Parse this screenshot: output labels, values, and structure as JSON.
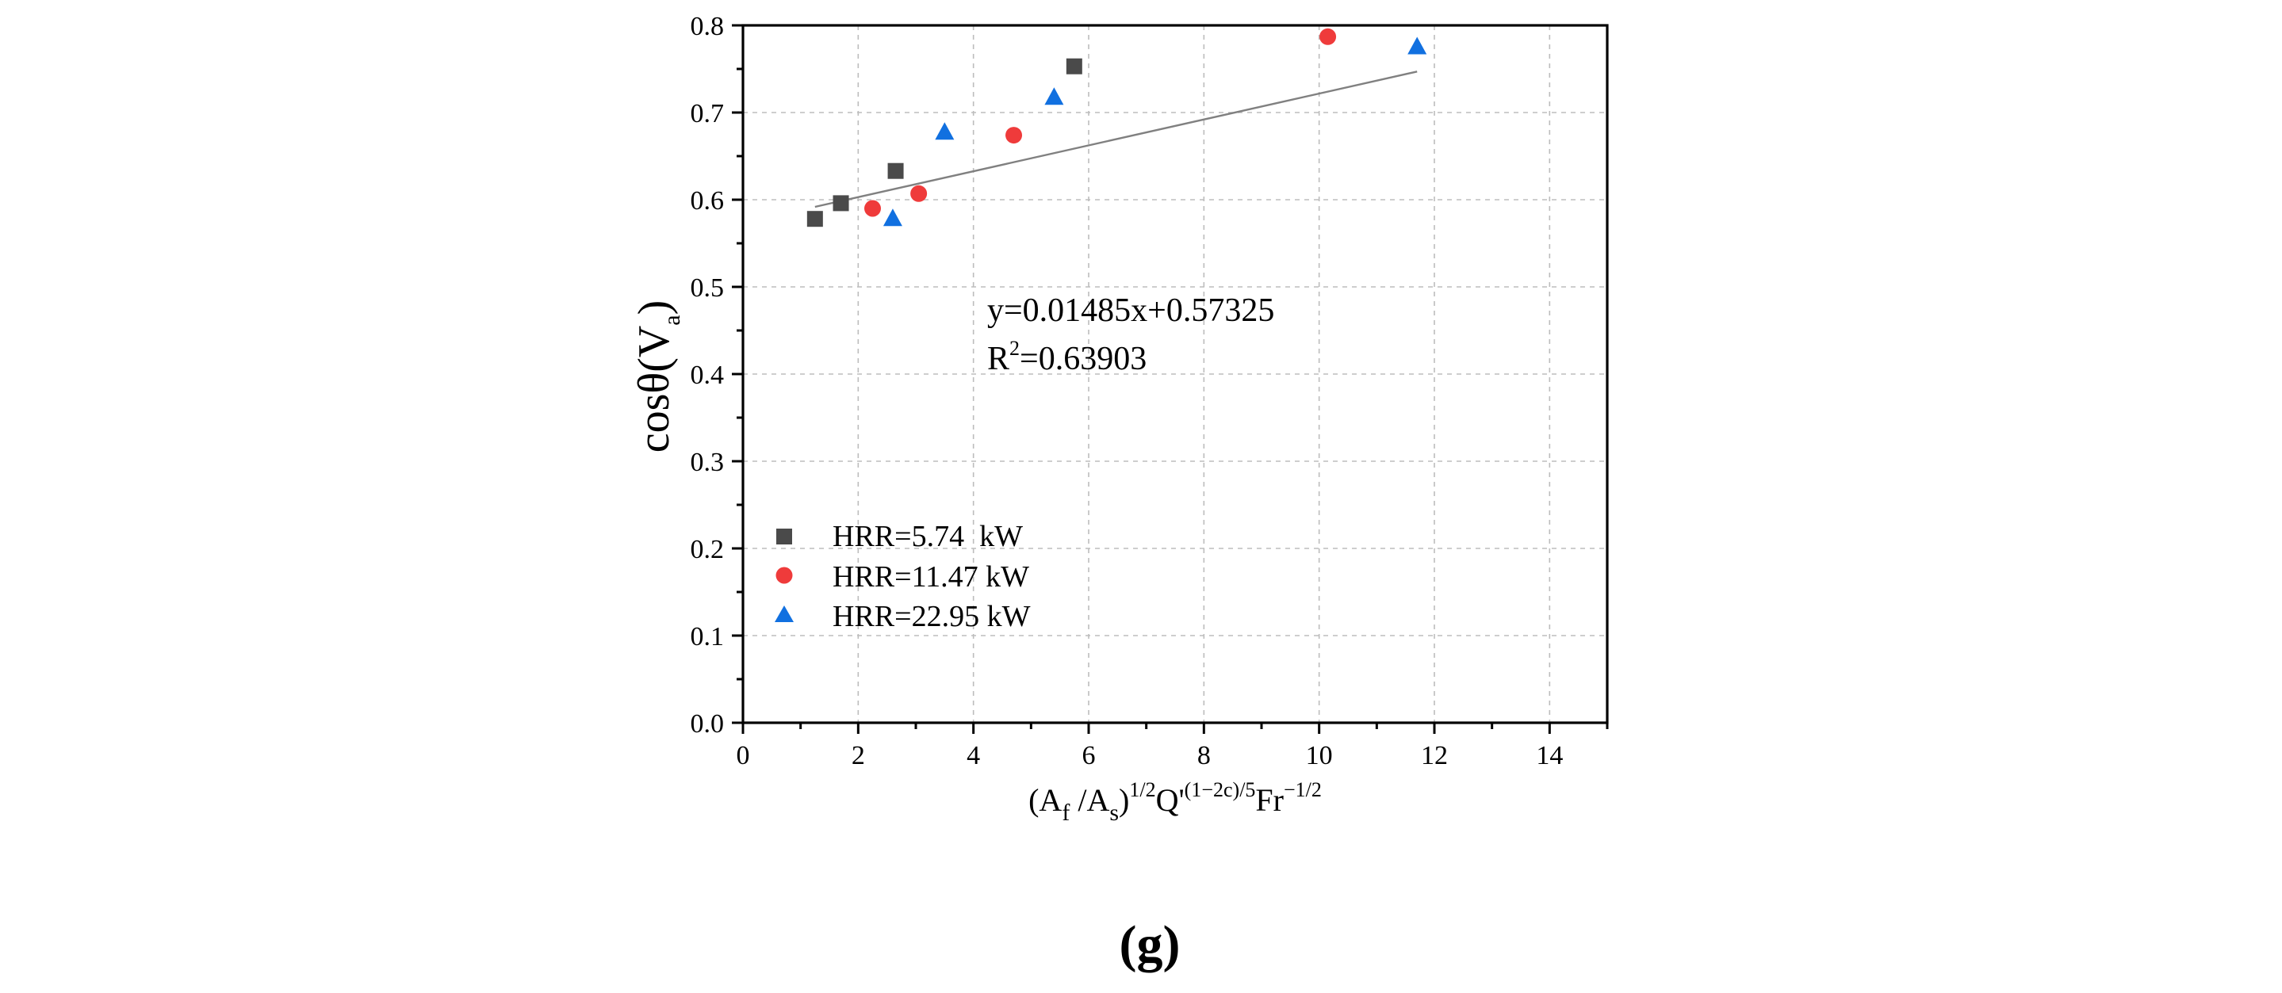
{
  "chart_data": {
    "type": "scatter",
    "title": "",
    "caption": "(g)",
    "x_label": {
      "main1": "(A",
      "sub1": "f",
      "main2": " /A",
      "sub2": "s",
      "main3": ")",
      "sup1": "1/2",
      "main4": "Q'",
      "sup2": "(1−2c)/5",
      "main5": "Fr",
      "sup3": "−1/2"
    },
    "y_label": {
      "main": "cosθ(V",
      "sub": "a",
      "close": ")"
    },
    "xlim": [
      0,
      15
    ],
    "ylim": [
      0,
      0.8
    ],
    "x_ticks": [
      0,
      2,
      4,
      6,
      8,
      10,
      12,
      14
    ],
    "x_tick_labels": [
      "0",
      "2",
      "4",
      "6",
      "8",
      "10",
      "12",
      "14"
    ],
    "y_ticks": [
      0,
      0.1,
      0.2,
      0.3,
      0.4,
      0.5,
      0.6,
      0.7,
      0.8
    ],
    "y_tick_labels": [
      "0.0",
      "0.1",
      "0.2",
      "0.3",
      "0.4",
      "0.5",
      "0.6",
      "0.7",
      "0.8"
    ],
    "grid": true,
    "legend_position": "lower-left",
    "series": [
      {
        "name": "HRR=5.74  kW",
        "marker": "square",
        "color": "#4a4a4a",
        "points": [
          [
            1.25,
            0.578
          ],
          [
            1.7,
            0.596
          ],
          [
            2.65,
            0.633
          ],
          [
            5.75,
            0.753
          ]
        ]
      },
      {
        "name": "HRR=11.47 kW",
        "marker": "circle",
        "color": "#ef3b3b",
        "points": [
          [
            2.25,
            0.59
          ],
          [
            3.05,
            0.607
          ],
          [
            4.7,
            0.674
          ],
          [
            10.15,
            0.787
          ]
        ]
      },
      {
        "name": "HRR=22.95 kW",
        "marker": "triangle",
        "color": "#1170e0",
        "points": [
          [
            2.6,
            0.578
          ],
          [
            3.5,
            0.677
          ],
          [
            5.4,
            0.717
          ],
          [
            11.7,
            0.775
          ]
        ]
      }
    ],
    "fit": {
      "slope": 0.01485,
      "intercept": 0.57325,
      "x_range": [
        1.25,
        11.7
      ],
      "color": "#808080",
      "equation_text": "y=0.01485x+0.57325",
      "r2_prefix": "R",
      "r2_sup": "2",
      "r2_value": "=0.63903"
    }
  }
}
